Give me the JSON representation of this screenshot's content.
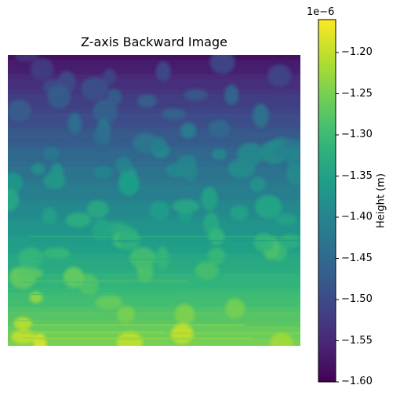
{
  "chart_data": {
    "type": "heatmap",
    "title": "Z-axis Backward Image",
    "colormap": "viridis",
    "axes_visible": false,
    "colorbar": {
      "label": "Height (m)",
      "exponent_label": "1e−6",
      "vmin": -1.6,
      "vmax": -1.16,
      "ticks": [
        -1.2,
        -1.25,
        -1.3,
        -1.35,
        -1.4,
        -1.45,
        -1.5,
        -1.55,
        -1.6
      ],
      "tick_labels": [
        "−1.20",
        "−1.25",
        "−1.30",
        "−1.35",
        "−1.40",
        "−1.45",
        "−1.50",
        "−1.55",
        "−1.60"
      ]
    },
    "surface": {
      "background_gradient": {
        "top": -1.58,
        "bottom": -1.25
      },
      "blob_amplitude": 0.06
    }
  }
}
